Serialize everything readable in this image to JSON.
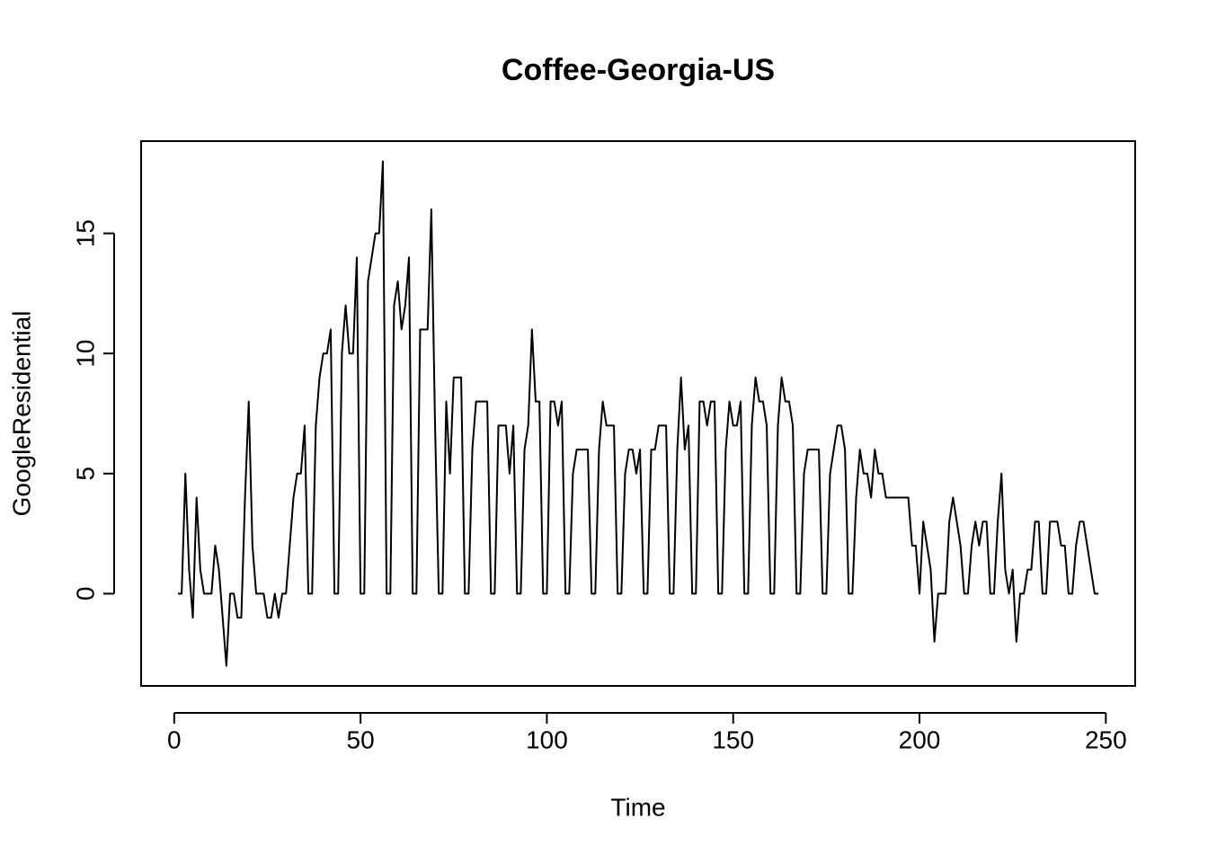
{
  "chart_data": {
    "type": "line",
    "title": "Coffee-Georgia-US",
    "x_label": "Time",
    "y_label": "GoogleResidential",
    "color": "#000000",
    "x": [
      1,
      2,
      3,
      4,
      5,
      6,
      7,
      8,
      9,
      10,
      11,
      12,
      13,
      14,
      15,
      16,
      17,
      18,
      19,
      20,
      21,
      22,
      23,
      24,
      25,
      26,
      27,
      28,
      29,
      30,
      31,
      32,
      33,
      34,
      35,
      36,
      37,
      38,
      39,
      40,
      41,
      42,
      43,
      44,
      45,
      46,
      47,
      48,
      49,
      50,
      51,
      52,
      53,
      54,
      55,
      56,
      57,
      58,
      59,
      60,
      61,
      62,
      63,
      64,
      65,
      66,
      67,
      68,
      69,
      70,
      71,
      72,
      73,
      74,
      75,
      76,
      77,
      78,
      79,
      80,
      81,
      82,
      83,
      84,
      85,
      86,
      87,
      88,
      89,
      90,
      91,
      92,
      93,
      94,
      95,
      96,
      97,
      98,
      99,
      100,
      101,
      102,
      103,
      104,
      105,
      106,
      107,
      108,
      109,
      110,
      111,
      112,
      113,
      114,
      115,
      116,
      117,
      118,
      119,
      120,
      121,
      122,
      123,
      124,
      125,
      126,
      127,
      128,
      129,
      130,
      131,
      132,
      133,
      134,
      135,
      136,
      137,
      138,
      139,
      140,
      141,
      142,
      143,
      144,
      145,
      146,
      147,
      148,
      149,
      150,
      151,
      152,
      153,
      154,
      155,
      156,
      157,
      158,
      159,
      160,
      161,
      162,
      163,
      164,
      165,
      166,
      167,
      168,
      169,
      170,
      171,
      172,
      173,
      174,
      175,
      176,
      177,
      178,
      179,
      180,
      181,
      182,
      183,
      184,
      185,
      186,
      187,
      188,
      189,
      190,
      191,
      192,
      193,
      194,
      195,
      196,
      197,
      198,
      199,
      200,
      201,
      202,
      203,
      204,
      205,
      206,
      207,
      208,
      209,
      210,
      211,
      212,
      213,
      214,
      215,
      216,
      217,
      218,
      219,
      220,
      221,
      222,
      223,
      224,
      225,
      226,
      227,
      228,
      229,
      230,
      231,
      232,
      233,
      234,
      235,
      236,
      237,
      238,
      239,
      240,
      241,
      242,
      243,
      244,
      245,
      246,
      247,
      248
    ],
    "values": [
      0,
      0,
      5,
      1,
      -1,
      4,
      1,
      0,
      0,
      0,
      2,
      1,
      -1,
      -3,
      0,
      0,
      -1,
      -1,
      4,
      8,
      2,
      0,
      0,
      0,
      -1,
      -1,
      0,
      -1,
      0,
      0,
      2,
      4,
      5,
      5,
      7,
      0,
      0,
      7,
      9,
      10,
      10,
      11,
      0,
      0,
      10,
      12,
      10,
      10,
      14,
      0,
      0,
      13,
      14,
      15,
      15,
      18,
      0,
      0,
      12,
      13,
      11,
      12,
      14,
      0,
      0,
      11,
      11,
      11,
      16,
      7,
      0,
      0,
      8,
      5,
      9,
      9,
      9,
      0,
      0,
      6,
      8,
      8,
      8,
      8,
      0,
      0,
      7,
      7,
      7,
      5,
      7,
      0,
      0,
      6,
      7,
      11,
      8,
      8,
      0,
      0,
      8,
      8,
      7,
      8,
      0,
      0,
      5,
      6,
      6,
      6,
      6,
      0,
      0,
      6,
      8,
      7,
      7,
      7,
      0,
      0,
      5,
      6,
      6,
      5,
      6,
      0,
      0,
      6,
      6,
      7,
      7,
      7,
      0,
      0,
      6,
      9,
      6,
      7,
      0,
      0,
      8,
      8,
      7,
      8,
      8,
      0,
      0,
      6,
      8,
      7,
      7,
      8,
      0,
      0,
      7,
      9,
      8,
      8,
      7,
      0,
      0,
      7,
      9,
      8,
      8,
      7,
      0,
      0,
      5,
      6,
      6,
      6,
      6,
      0,
      0,
      5,
      6,
      7,
      7,
      6,
      0,
      0,
      4,
      6,
      5,
      5,
      4,
      6,
      5,
      5,
      4,
      4,
      4,
      4,
      4,
      4,
      4,
      2,
      2,
      0,
      3,
      2,
      1,
      -2,
      0,
      0,
      0,
      3,
      4,
      3,
      2,
      0,
      0,
      2,
      3,
      2,
      3,
      3,
      0,
      0,
      3,
      5,
      1,
      0,
      1,
      -2,
      0,
      0,
      1,
      1,
      3,
      3,
      0,
      0,
      3,
      3,
      3,
      2,
      2,
      0,
      0,
      2,
      3,
      3,
      2,
      1,
      0,
      0
    ],
    "xlim": [
      -8.88,
      257.88
    ],
    "xticks": [
      0,
      50,
      100,
      150,
      200,
      250
    ],
    "ylim": [
      -3.84,
      18.84
    ],
    "yticks": [
      0,
      5,
      10,
      15
    ]
  }
}
